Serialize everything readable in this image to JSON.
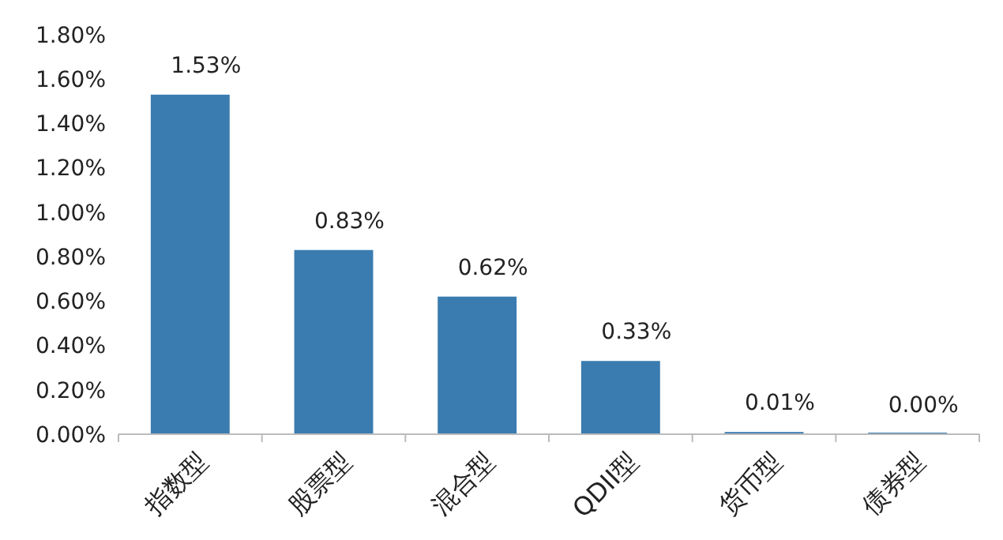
{
  "chart_data": {
    "type": "bar",
    "categories": [
      "指数型",
      "股票型",
      "混合型",
      "QDII型",
      "货币型",
      "债券型"
    ],
    "values": [
      1.53,
      0.83,
      0.62,
      0.33,
      0.01,
      0.0
    ],
    "color": "#3a7cb0",
    "value_labels": [
      "1.53%",
      "0.83%",
      "0.62%",
      "0.33%",
      "0.01%",
      "0.00%"
    ],
    "ylim": [
      0,
      1.8
    ],
    "yticks": [
      {
        "value": 0,
        "label": "0.00%"
      },
      {
        "value": 0.2,
        "label": "0.20%"
      },
      {
        "value": 0.4,
        "label": "0.40%"
      },
      {
        "value": 0.6,
        "label": "0.60%"
      },
      {
        "value": 0.8,
        "label": "0.80%"
      },
      {
        "value": 1.0,
        "label": "1.00%"
      },
      {
        "value": 1.2,
        "label": "1.20%"
      },
      {
        "value": 1.4,
        "label": "1.40%"
      },
      {
        "value": 1.6,
        "label": "1.60%"
      },
      {
        "value": 1.8,
        "label": "1.80%"
      }
    ],
    "grid": false
  }
}
